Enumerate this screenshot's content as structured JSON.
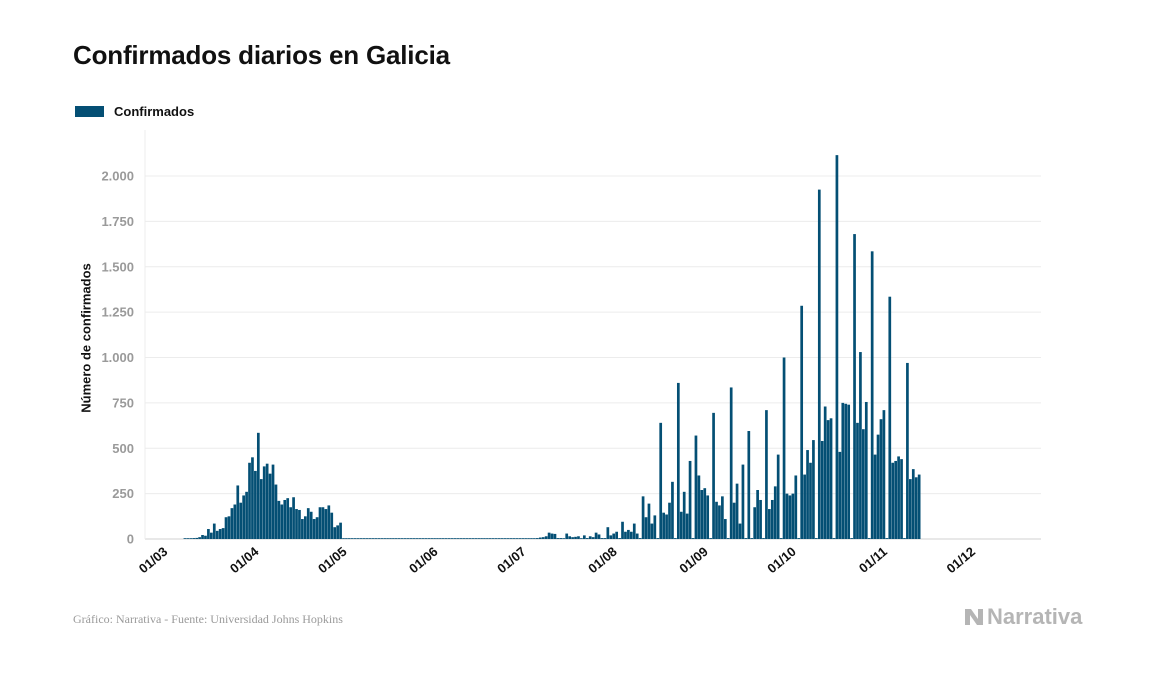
{
  "title": "Confirmados diarios en Galicia",
  "legend": {
    "label": "Confirmados",
    "color": "#044f74"
  },
  "source": "Gráfico: Narrativa - Fuente: Universidad Johns Hopkins",
  "brand": "Narrativa",
  "chart_data": {
    "type": "bar",
    "title": "Confirmados diarios en Galicia",
    "ylabel": "Número de confirmados",
    "xlabel": "",
    "ylim": [
      0,
      2250
    ],
    "yticks": [
      0,
      250,
      500,
      750,
      1000,
      1250,
      1500,
      1750,
      2000
    ],
    "ytick_labels": [
      "0",
      "250",
      "500",
      "750",
      "1.000",
      "1.250",
      "1.500",
      "1.750",
      "2.000"
    ],
    "xticks": [
      {
        "day": 0,
        "label": "01/03"
      },
      {
        "day": 31,
        "label": "01/04"
      },
      {
        "day": 61,
        "label": "01/05"
      },
      {
        "day": 92,
        "label": "01/06"
      },
      {
        "day": 122,
        "label": "01/07"
      },
      {
        "day": 153,
        "label": "01/08"
      },
      {
        "day": 184,
        "label": "01/09"
      },
      {
        "day": 214,
        "label": "01/10"
      },
      {
        "day": 245,
        "label": "01/11"
      },
      {
        "day": 275,
        "label": "01/12"
      }
    ],
    "grid": true,
    "legend_position": "top-left",
    "x_start": "01/03",
    "series": [
      {
        "name": "Confirmados",
        "color": "#044f74",
        "values": [
          0,
          0,
          0,
          0,
          0,
          0,
          0,
          1,
          2,
          3,
          5,
          6,
          10,
          22,
          18,
          55,
          35,
          85,
          45,
          55,
          60,
          120,
          125,
          170,
          190,
          295,
          200,
          240,
          260,
          420,
          450,
          375,
          585,
          330,
          400,
          415,
          360,
          410,
          300,
          210,
          190,
          215,
          225,
          175,
          230,
          165,
          160,
          110,
          125,
          170,
          150,
          110,
          120,
          175,
          175,
          165,
          185,
          145,
          65,
          75,
          90,
          2,
          1,
          1,
          1,
          1,
          1,
          1,
          1,
          1,
          1,
          1,
          1,
          1,
          1,
          1,
          1,
          1,
          1,
          1,
          1,
          1,
          1,
          1,
          1,
          1,
          1,
          1,
          1,
          1,
          1,
          1,
          1,
          1,
          1,
          1,
          1,
          1,
          1,
          1,
          1,
          1,
          1,
          1,
          1,
          1,
          1,
          1,
          1,
          1,
          1,
          1,
          1,
          1,
          1,
          1,
          1,
          1,
          1,
          1,
          1,
          1,
          1,
          1,
          1,
          2,
          3,
          5,
          8,
          10,
          15,
          35,
          30,
          28,
          5,
          5,
          3,
          30,
          15,
          10,
          12,
          15,
          3,
          20,
          5,
          15,
          10,
          35,
          25,
          5,
          5,
          65,
          20,
          30,
          40,
          5,
          95,
          40,
          50,
          40,
          85,
          30,
          5,
          235,
          120,
          195,
          85,
          130,
          5,
          640,
          145,
          135,
          200,
          315,
          5,
          860,
          150,
          260,
          140,
          430,
          5,
          570,
          350,
          270,
          280,
          240,
          5,
          695,
          205,
          185,
          235,
          110,
          5,
          835,
          200,
          305,
          85,
          410,
          5,
          595,
          5,
          175,
          270,
          215,
          5,
          710,
          165,
          215,
          290,
          465,
          5,
          1000,
          250,
          240,
          250,
          350,
          5,
          1285,
          355,
          490,
          420,
          545,
          5,
          1925,
          540,
          730,
          655,
          665,
          5,
          2115,
          480,
          750,
          745,
          740,
          5,
          1680,
          640,
          1030,
          605,
          755,
          5,
          1585,
          465,
          575,
          660,
          710,
          5,
          1335,
          420,
          430,
          455,
          440,
          5,
          970,
          330,
          385,
          340,
          355
        ]
      }
    ]
  }
}
